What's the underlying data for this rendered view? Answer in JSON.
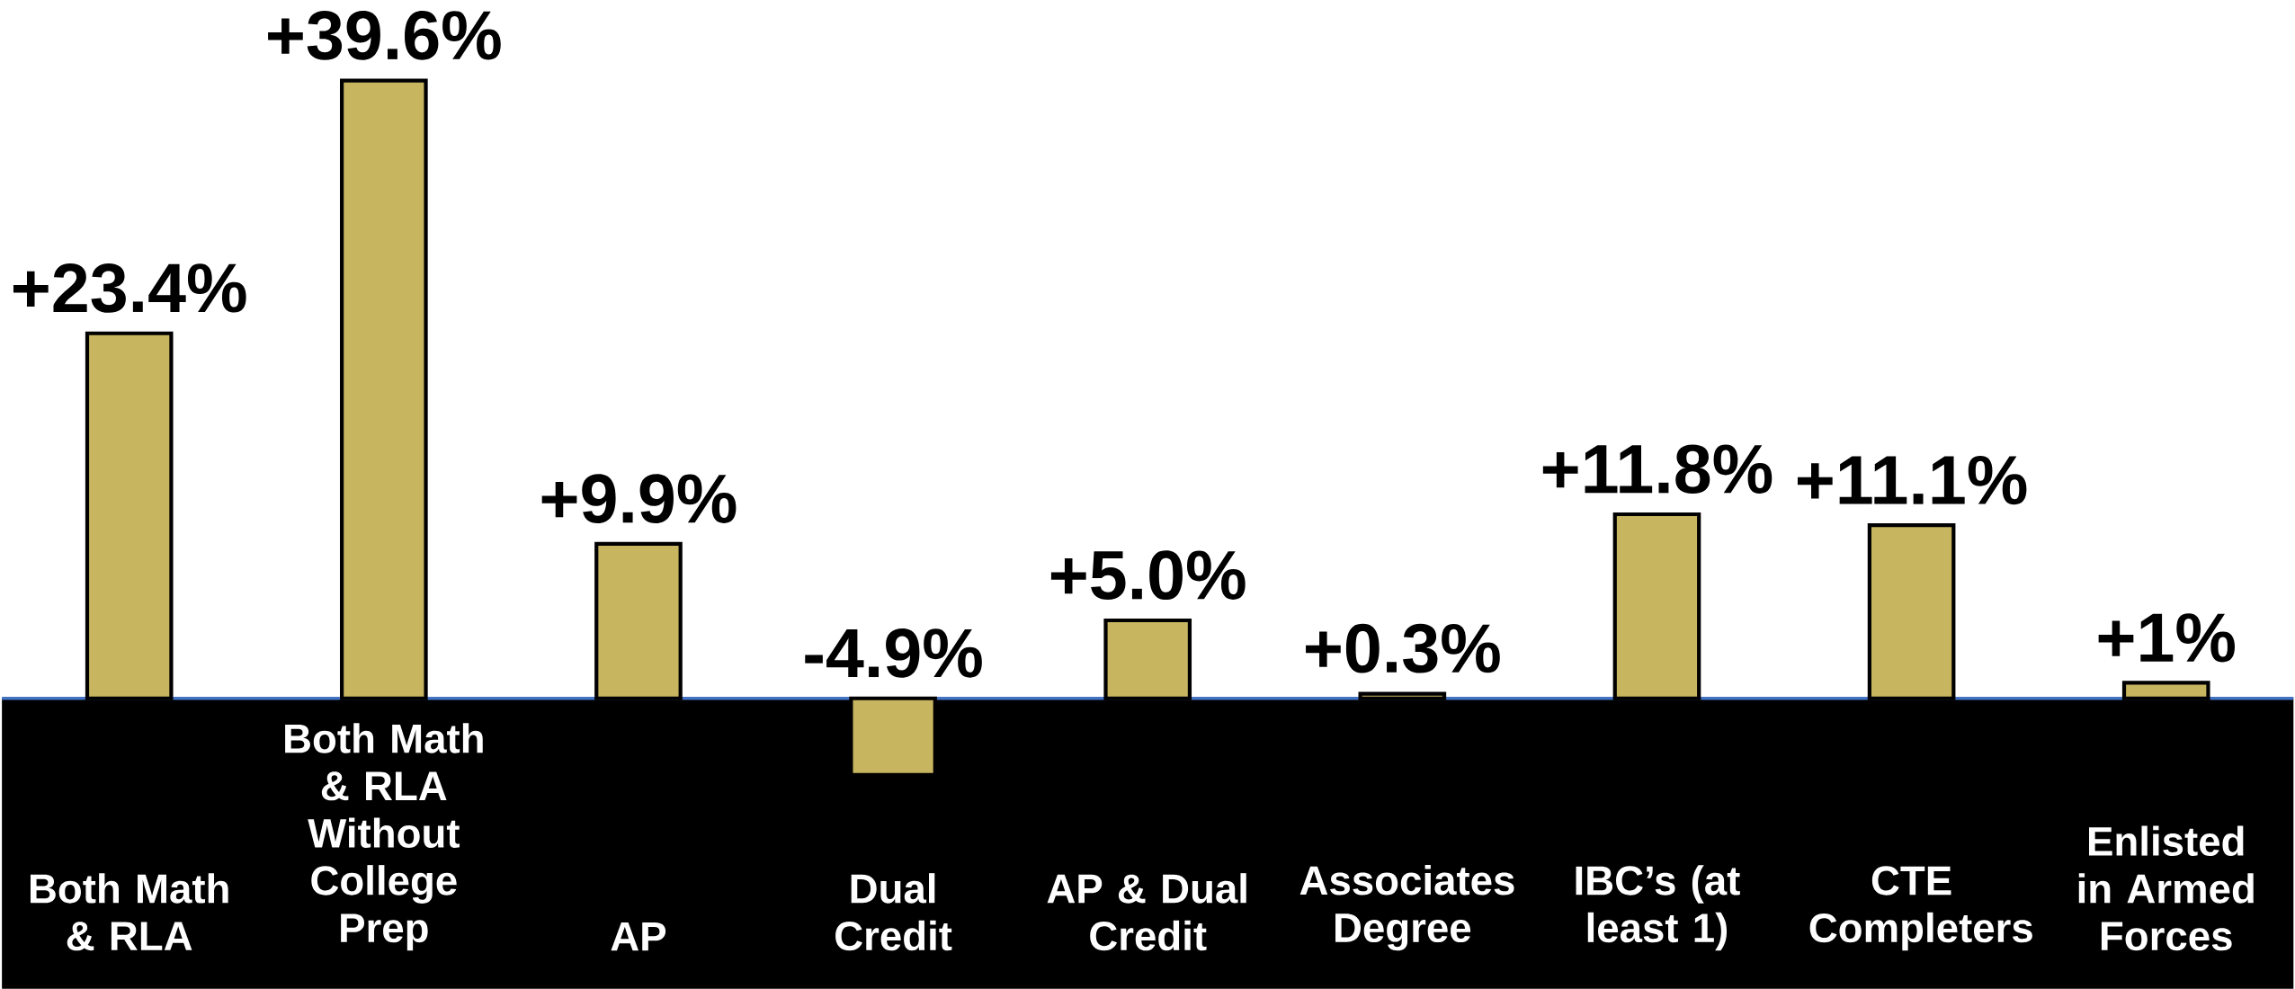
{
  "chart_data": {
    "type": "bar",
    "categories": [
      "Both Math & RLA",
      "Both Math & RLA Without College Prep",
      "AP",
      "Dual Credit",
      "AP & Dual Credit",
      "Associates Degree",
      "IBC’s (at least 1)",
      "CTE Completers",
      "Enlisted in Armed Forces"
    ],
    "values": [
      23.4,
      39.6,
      9.9,
      -4.9,
      5.0,
      0.3,
      11.8,
      11.1,
      1
    ],
    "value_labels": [
      "+23.4%",
      "+39.6%",
      "+9.9%",
      "-4.9%",
      "+5.0%",
      "+0.3%",
      "+11.8%",
      "+11.1%",
      "+1%"
    ],
    "color": "#c8b560"
  }
}
